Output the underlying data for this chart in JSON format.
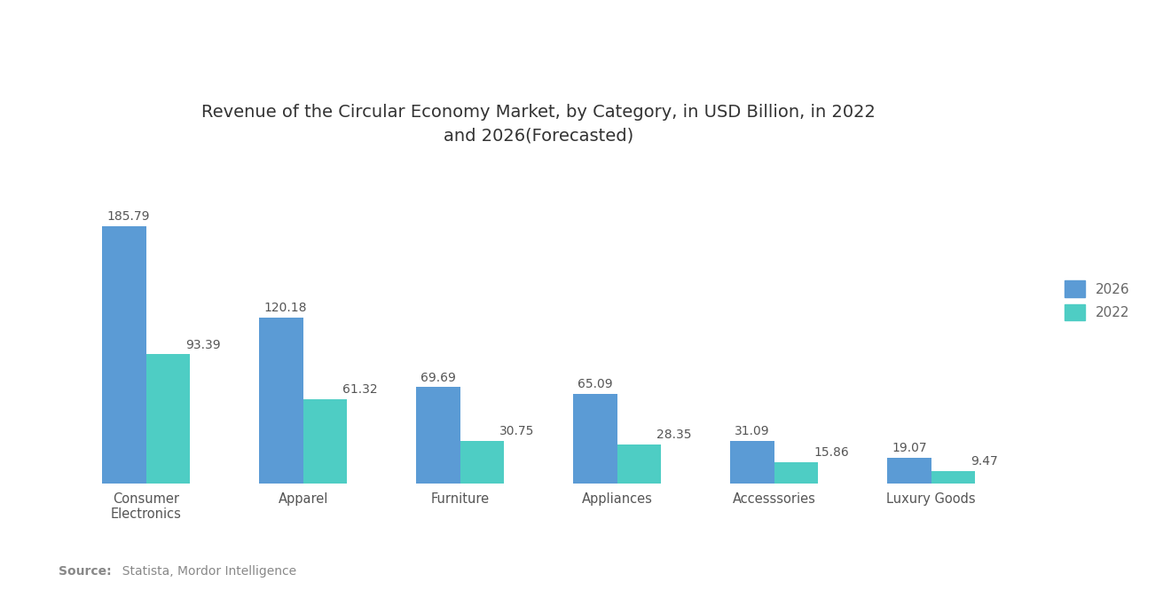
{
  "title": "Revenue of the Circular Economy Market, by Category, in USD Billion, in 2022\nand 2026(Forecasted)",
  "categories": [
    "Consumer\nElectronics",
    "Apparel",
    "Furniture",
    "Appliances",
    "Accesssories",
    "Luxury Goods"
  ],
  "values_2026": [
    185.79,
    120.18,
    69.69,
    65.09,
    31.09,
    19.07
  ],
  "values_2022": [
    93.39,
    61.32,
    30.75,
    28.35,
    15.86,
    9.47
  ],
  "color_2026": "#5B9BD5",
  "color_2022": "#4ECDC4",
  "bar_width": 0.28,
  "ylim": [
    0,
    230
  ],
  "legend_labels": [
    "2026",
    "2022"
  ],
  "source_bold": "Source:",
  "source_normal": "  Statista, Mordor Intelligence",
  "background_color": "#FFFFFF",
  "title_fontsize": 14,
  "legend_fontsize": 11,
  "tick_fontsize": 10.5,
  "annotation_fontsize": 10
}
